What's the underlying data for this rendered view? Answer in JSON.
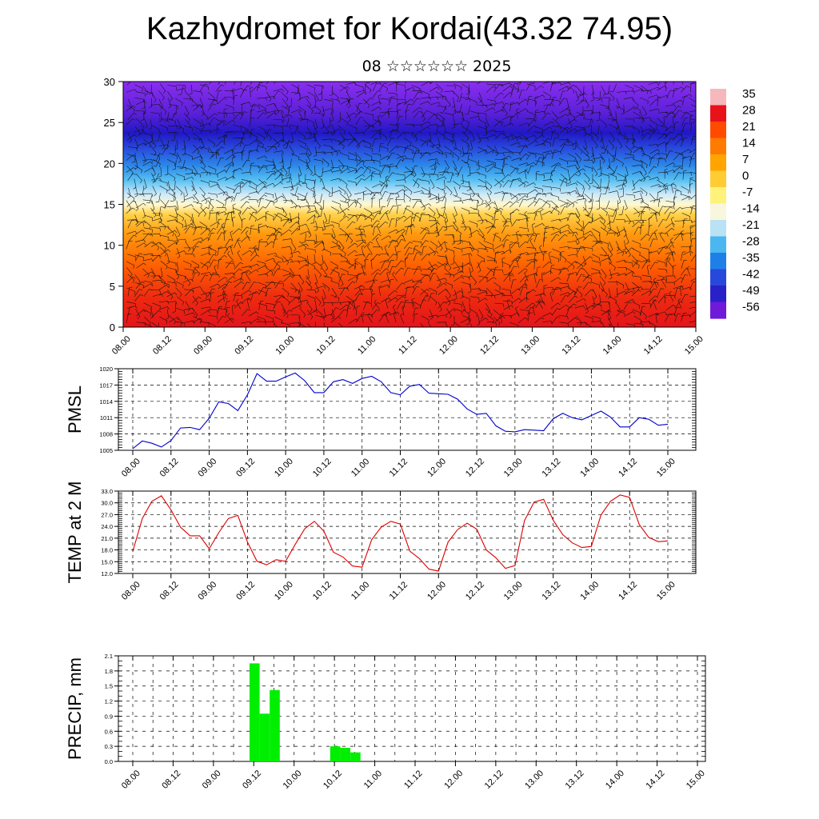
{
  "title": "Kazhydromet for Kordai(43.32 74.95)",
  "subtitle": "08 ☆☆☆☆☆☆ 2025",
  "time_labels": [
    "08.00",
    "08.12",
    "09.00",
    "09.12",
    "10.00",
    "10.12",
    "11.00",
    "11.12",
    "12.00",
    "12.12",
    "13.00",
    "13.12",
    "14.00",
    "14.12",
    "15.00"
  ],
  "chart_data": [
    {
      "type": "heatmap",
      "name": "temperature-wind-cross-section",
      "ylim": [
        0,
        30
      ],
      "yticks": [
        0,
        5,
        10,
        15,
        20,
        25,
        30
      ],
      "colorbar_labels": [
        "35",
        "28",
        "21",
        "14",
        "7",
        "0",
        "-7",
        "-14",
        "-21",
        "-28",
        "-35",
        "-42",
        "-49",
        "-56"
      ],
      "colorbar_colors": [
        "#f6b8bc",
        "#e8121a",
        "#ff4a00",
        "#ff7a00",
        "#ffa400",
        "#ffcc33",
        "#fff27a",
        "#f8f6dd",
        "#b9e2f4",
        "#4ab7f0",
        "#1f7fe8",
        "#2848dc",
        "#2a20c8",
        "#6f1ad9"
      ]
    },
    {
      "type": "line",
      "ylabel": "PMSL",
      "ylim": [
        1005,
        1020
      ],
      "yticks": [
        "1005",
        "1008",
        "1011",
        "1014",
        "1017",
        "1020"
      ],
      "color": "#0000cc",
      "values": [
        1005.3,
        1006.7,
        1006.3,
        1005.6,
        1006.8,
        1009.1,
        1009.2,
        1008.8,
        1010.9,
        1013.9,
        1013.6,
        1012.3,
        1015.2,
        1019.1,
        1017.7,
        1017.7,
        1018.5,
        1019.2,
        1017.8,
        1015.6,
        1015.6,
        1017.6,
        1018.0,
        1017.3,
        1018.2,
        1018.6,
        1017.6,
        1015.6,
        1015.2,
        1016.8,
        1017.1,
        1015.5,
        1015.4,
        1015.3,
        1014.4,
        1012.6,
        1011.6,
        1011.8,
        1009.5,
        1008.5,
        1008.4,
        1008.8,
        1008.7,
        1008.6,
        1010.8,
        1011.8,
        1011.0,
        1010.6,
        1011.4,
        1012.2,
        1011.1,
        1009.3,
        1009.3,
        1011.0,
        1010.7,
        1009.6,
        1009.8
      ]
    },
    {
      "type": "line",
      "ylabel": "TEMP at 2 M",
      "ylim": [
        12,
        33
      ],
      "yticks": [
        "12.0",
        "15.0",
        "18.0",
        "21.0",
        "24.0",
        "27.0",
        "30.0",
        "33.0"
      ],
      "color": "#dd0000",
      "values": [
        17.6,
        26.0,
        30.4,
        31.8,
        28.2,
        23.8,
        21.6,
        21.6,
        18.3,
        22.4,
        26.0,
        26.8,
        20.0,
        15.1,
        14.2,
        15.5,
        15.1,
        19.4,
        23.4,
        25.3,
        22.8,
        17.4,
        16.2,
        13.9,
        13.6,
        20.6,
        23.8,
        25.3,
        24.6,
        17.7,
        15.8,
        13.1,
        12.6,
        20.0,
        23.2,
        24.8,
        23.3,
        18.0,
        16.0,
        13.3,
        14.0,
        25.5,
        30.2,
        30.9,
        25.6,
        21.9,
        19.8,
        18.6,
        18.9,
        26.9,
        30.4,
        32.0,
        31.4,
        24.5,
        21.2,
        20.1,
        20.3
      ]
    },
    {
      "type": "bar",
      "ylabel": "PRECIP, mm",
      "ylim": [
        0,
        2.1
      ],
      "yticks": [
        "0.0",
        "0.3",
        "0.6",
        "0.9",
        "1.2",
        "1.5",
        "1.8",
        "2.1"
      ],
      "color": "#00ee00",
      "bars": [
        {
          "x": 12,
          "value": 1.95
        },
        {
          "x": 13,
          "value": 0.95
        },
        {
          "x": 14,
          "value": 1.42
        },
        {
          "x": 20,
          "value": 0.3
        },
        {
          "x": 21,
          "value": 0.27
        },
        {
          "x": 22,
          "value": 0.18
        }
      ]
    }
  ]
}
